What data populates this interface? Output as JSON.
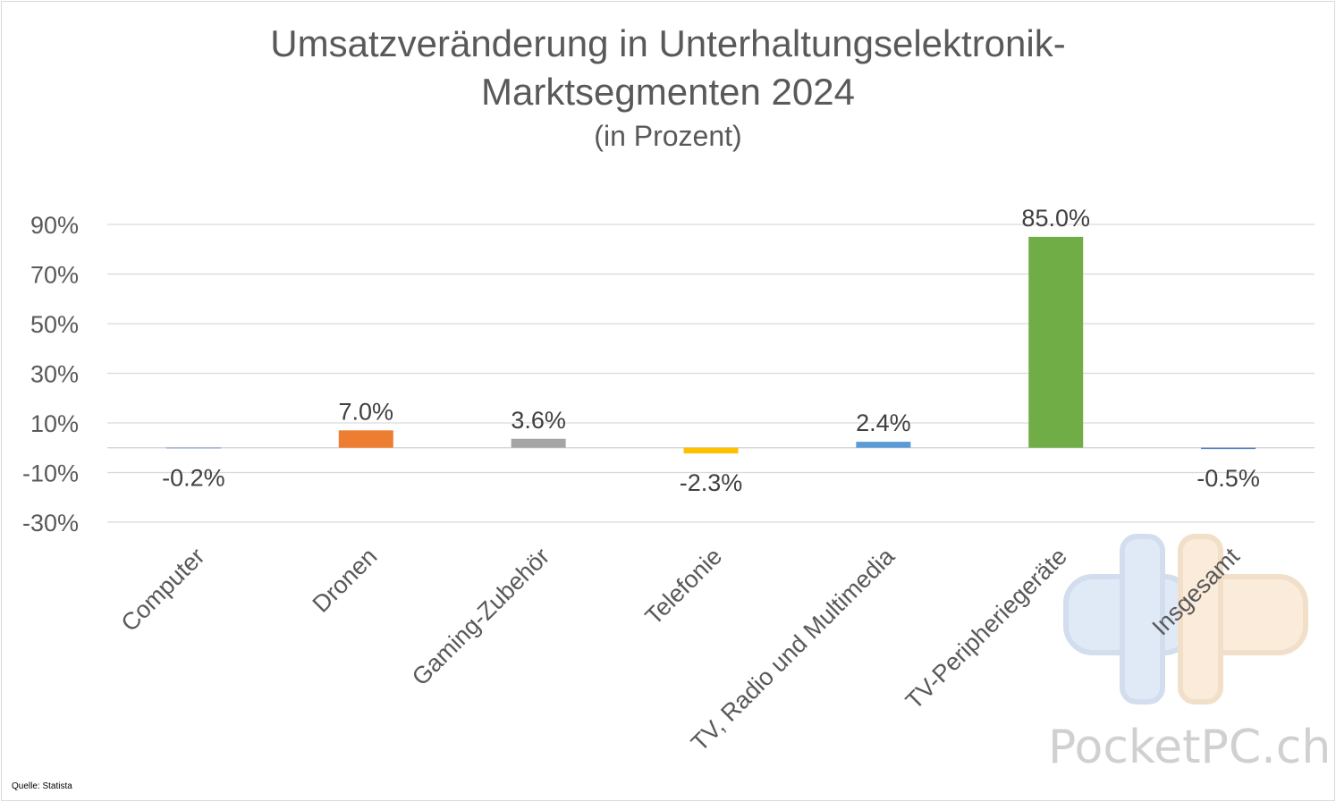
{
  "chart_data": {
    "type": "bar",
    "title_line1": "Umsatzveränderung in Unterhaltungselektronik-",
    "title_line2": "Marktsegmenten 2024",
    "subtitle": "(in Prozent)",
    "categories": [
      "Computer",
      "Dronen",
      "Gaming-Zubehör",
      "Telefonie",
      "TV, Radio und Multimedia",
      "TV-Peripheriegeräte",
      "Insgesamt"
    ],
    "values": [
      -0.2,
      7.0,
      3.6,
      -2.3,
      2.4,
      85.0,
      -0.5
    ],
    "data_labels": [
      "-0.2%",
      "7.0%",
      "3.6%",
      "-2.3%",
      "2.4%",
      "85.0%",
      "-0.5%"
    ],
    "colors": [
      "#4472c4",
      "#ed7d31",
      "#a5a5a5",
      "#ffc000",
      "#5b9bd5",
      "#70ad47",
      "#4472c4"
    ],
    "ylim": [
      -30,
      90
    ],
    "yticks": [
      90,
      70,
      50,
      30,
      10,
      -10,
      -30
    ],
    "ytick_labels": [
      "90%",
      "70%",
      "50%",
      "30%",
      "10%",
      "-10%",
      "-30%"
    ],
    "grid": true,
    "legend": "none"
  },
  "source_note": "Quelle: Statista",
  "watermark": {
    "text": "PocketPC.ch"
  }
}
